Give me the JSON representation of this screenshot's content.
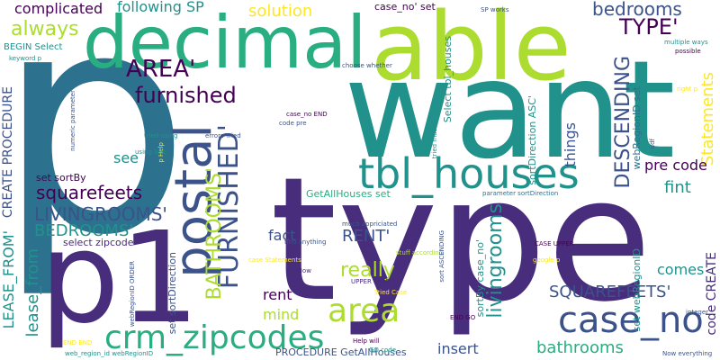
{
  "palette": {
    "dark-purple": "#440154",
    "indigo": "#472d7b",
    "blue": "#3b528b",
    "steel-blue": "#2c728e",
    "teal": "#21918c",
    "sea-green": "#28ae80",
    "green": "#5ec962",
    "lime": "#addc30",
    "yellow": "#fde725"
  },
  "words": [
    {
      "text": "p",
      "color": "steel-blue"
    },
    {
      "text": "want",
      "color": "teal"
    },
    {
      "text": "type",
      "color": "indigo"
    },
    {
      "text": "decimal",
      "color": "sea-green"
    },
    {
      "text": "able",
      "color": "lime"
    },
    {
      "text": "p1",
      "color": "indigo"
    },
    {
      "text": "tbl_houses",
      "color": "teal"
    },
    {
      "text": "postal",
      "color": "blue"
    },
    {
      "text": "crm_zipcodes",
      "color": "sea-green"
    },
    {
      "text": "case_no",
      "color": "blue"
    },
    {
      "text": "area",
      "color": "lime"
    },
    {
      "text": "AREA'",
      "color": "dark-purple"
    },
    {
      "text": "FURNISHED'",
      "color": "blue"
    },
    {
      "text": "furnished",
      "color": "dark-purple"
    },
    {
      "text": "TYPE'",
      "color": "dark-purple"
    },
    {
      "text": "always",
      "color": "lime"
    },
    {
      "text": "bedrooms",
      "color": "blue"
    },
    {
      "text": "DESCENDING",
      "color": "blue"
    },
    {
      "text": "squarefeets",
      "color": "dark-purple"
    },
    {
      "text": "LIVINGROOMS'",
      "color": "blue"
    },
    {
      "text": "BEDROOMS'",
      "color": "teal"
    },
    {
      "text": "BATHROOMS'",
      "color": "lime"
    },
    {
      "text": "really",
      "color": "lime"
    },
    {
      "text": "SQUAREFEETS'",
      "color": "blue"
    },
    {
      "text": "bathrooms",
      "color": "sea-green"
    },
    {
      "text": "livingrooms",
      "color": "teal"
    },
    {
      "text": "RENT'",
      "color": "blue"
    },
    {
      "text": "fint",
      "color": "teal"
    },
    {
      "text": "complicated",
      "color": "dark-purple"
    },
    {
      "text": "following SP",
      "color": "teal"
    },
    {
      "text": "solution",
      "color": "yellow"
    },
    {
      "text": "Statements",
      "color": "yellow"
    },
    {
      "text": "things",
      "color": "blue"
    },
    {
      "text": "pre code",
      "color": "dark-purple"
    },
    {
      "text": "see",
      "color": "teal"
    },
    {
      "text": "fact",
      "color": "blue"
    },
    {
      "text": "rent",
      "color": "dark-purple"
    },
    {
      "text": "mind",
      "color": "lime"
    },
    {
      "text": "comes",
      "color": "teal"
    },
    {
      "text": "insert",
      "color": "blue"
    },
    {
      "text": "lease_from",
      "color": "teal"
    },
    {
      "text": "LEASE_FROM'",
      "color": "teal"
    },
    {
      "text": "CREATE PROCEDURE",
      "color": "blue"
    },
    {
      "text": "code CREATE",
      "color": "indigo"
    },
    {
      "text": "case_no' set",
      "color": "dark-purple"
    },
    {
      "text": "Select tbl_houses",
      "color": "teal"
    },
    {
      "text": "sortDirection ASC'",
      "color": "teal"
    },
    {
      "text": "webRegionID set",
      "color": "steel-blue"
    },
    {
      "text": "sortBy case_no'",
      "color": "teal"
    },
    {
      "text": "set webRegionID",
      "color": "teal"
    },
    {
      "text": "set sortBy",
      "color": "dark-purple"
    },
    {
      "text": "select zipcode",
      "color": "indigo"
    },
    {
      "text": "GetAllHouses set",
      "color": "sea-green"
    },
    {
      "text": "PROCEDURE GetAllHouses",
      "color": "blue"
    },
    {
      "text": "set sortDirection",
      "color": "blue"
    },
    {
      "text": "BEGIN Select",
      "color": "teal"
    },
    {
      "text": "keyword p",
      "color": "teal"
    },
    {
      "text": "SP works",
      "color": "blue"
    },
    {
      "text": "multiple ways",
      "color": "teal"
    },
    {
      "text": "possible",
      "color": "dark-purple"
    },
    {
      "text": "choose whether",
      "color": "blue"
    },
    {
      "text": "right p",
      "color": "yellow"
    },
    {
      "text": "case_no END",
      "color": "dark-purple"
    },
    {
      "text": "code pre",
      "color": "blue"
    },
    {
      "text": "errors Tried",
      "color": "blue"
    },
    {
      "text": "tried using",
      "color": "teal"
    },
    {
      "text": "numeric parameter",
      "color": "blue"
    },
    {
      "text": "tried must",
      "color": "teal"
    },
    {
      "text": "p Help",
      "color": "yellow"
    },
    {
      "text": "using SQL",
      "color": "teal"
    },
    {
      "text": "parameter sortDirection",
      "color": "steel-blue"
    },
    {
      "text": "much appriciated",
      "color": "blue"
    },
    {
      "text": "find anything",
      "color": "blue"
    },
    {
      "text": "case Statements",
      "color": "yellow"
    },
    {
      "text": "stuff according",
      "color": "lime"
    },
    {
      "text": "sort ASCENDING",
      "color": "blue"
    },
    {
      "text": "CASE UPPER",
      "color": "dark-purple"
    },
    {
      "text": "google p",
      "color": "yellow"
    },
    {
      "text": "p Now",
      "color": "indigo"
    },
    {
      "text": "UPPER sortBy",
      "color": "indigo"
    },
    {
      "text": "Tried Case",
      "color": "yellow"
    },
    {
      "text": "webRegionID ORDER",
      "color": "blue"
    },
    {
      "text": "END GO",
      "color": "dark-purple"
    },
    {
      "text": "integer",
      "color": "blue"
    },
    {
      "text": "END END",
      "color": "yellow"
    },
    {
      "text": "Help will",
      "color": "dark-purple"
    },
    {
      "text": "web_region_id webRegionID",
      "color": "teal"
    },
    {
      "text": "GO code",
      "color": "teal"
    },
    {
      "text": "Now everything",
      "color": "blue"
    },
    {
      "text": "udf",
      "color": "blue"
    }
  ]
}
